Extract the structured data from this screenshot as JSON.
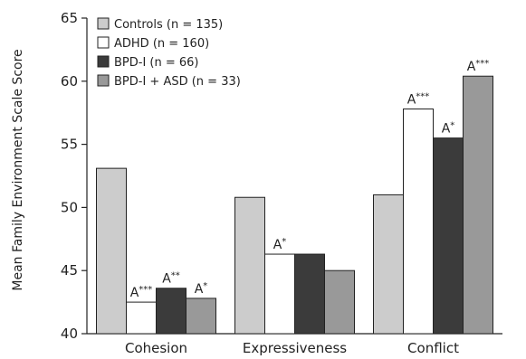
{
  "chart_data": {
    "type": "bar",
    "ylabel": "Mean Family Environment Scale Score",
    "xlabel": "",
    "ylim": [
      40,
      65
    ],
    "yticks": [
      40,
      45,
      50,
      55,
      60,
      65
    ],
    "categories": [
      "Cohesion",
      "Expressiveness",
      "Conflict"
    ],
    "legend_position": "top-left",
    "series": [
      {
        "name": "Controls (n = 135)",
        "color": "#cccccc",
        "values": [
          53.1,
          50.8,
          51.0
        ],
        "annotations": [
          "",
          "",
          ""
        ]
      },
      {
        "name": "ADHD (n = 160)",
        "color": "#ffffff",
        "values": [
          42.5,
          46.3,
          57.8
        ],
        "annotations": [
          "A***",
          "A*",
          "A***"
        ]
      },
      {
        "name": "BPD-I (n = 66)",
        "color": "#3b3b3b",
        "values": [
          43.6,
          46.3,
          55.5
        ],
        "annotations": [
          "A**",
          "",
          "A*"
        ]
      },
      {
        "name": "BPD-I + ASD (n = 33)",
        "color": "#999999",
        "values": [
          42.8,
          45.0,
          60.4
        ],
        "annotations": [
          "A*",
          "",
          "A***"
        ]
      }
    ]
  }
}
